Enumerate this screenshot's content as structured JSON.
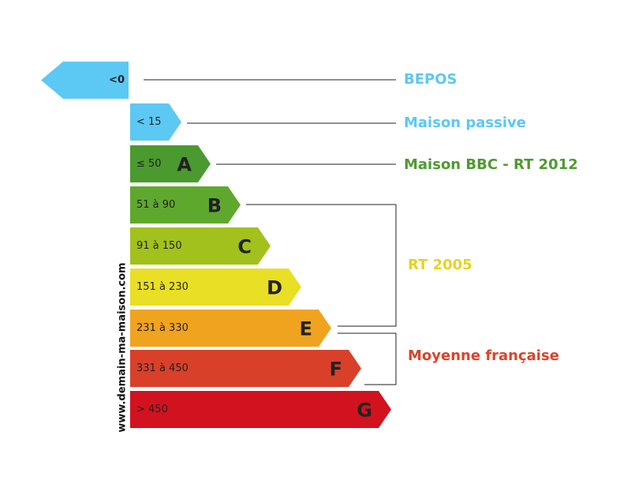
{
  "bands": [
    {
      "range": "<0",
      "color": "#5cc8f4"
    },
    {
      "range": "< 15",
      "color": "#5cc8f4"
    },
    {
      "range": "≤ 50",
      "letter": "A",
      "color": "#4b9a2f"
    },
    {
      "range": "51 à 90",
      "letter": "B",
      "color": "#5fa82e"
    },
    {
      "range": "91 à 150",
      "letter": "C",
      "color": "#a3c11c"
    },
    {
      "range": "151 à 230",
      "letter": "D",
      "color": "#e9df24"
    },
    {
      "range": "231 à 330",
      "letter": "E",
      "color": "#f0a31f"
    },
    {
      "range": "331 à 450",
      "letter": "F",
      "color": "#d9402a"
    },
    {
      "range": "> 450",
      "letter": "G",
      "color": "#d3121f"
    }
  ],
  "labels": [
    {
      "text": "BEPOS",
      "color": "#5cc8f4"
    },
    {
      "text": "Maison passive",
      "color": "#5cc8f4"
    },
    {
      "text": "Maison BBC - RT 2012",
      "color": "#4f9a30"
    },
    {
      "text": "RT 2005",
      "color": "#e6d41f"
    },
    {
      "text": "Moyenne française",
      "color": "#d9442a"
    }
  ],
  "watermark": "www.demain-ma-maison.com"
}
